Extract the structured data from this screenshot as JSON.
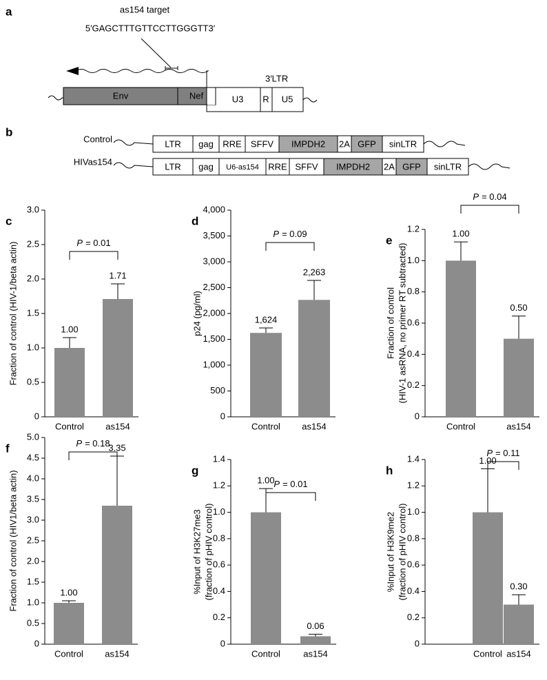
{
  "panel_a": {
    "letter": "a",
    "target_title": "as154 target",
    "target_seq": "5′GAGCTTTGTTCCTTGGGTT3′",
    "ltr_label": "3′LTR",
    "boxes": [
      "Env",
      "Nef",
      "U3",
      "R",
      "U5"
    ]
  },
  "panel_b": {
    "letter": "b",
    "rows": [
      {
        "label": "Control",
        "segments": [
          "LTR",
          "gag",
          "RRE",
          "SFFV",
          "IMPDH2",
          "2A",
          "GFP",
          "sinLTR"
        ]
      },
      {
        "label": "HIVas154",
        "segments": [
          "LTR",
          "gag",
          "U6-as154",
          "RRE",
          "SFFV",
          "IMPDH2",
          "2A",
          "GFP",
          "sinLTR"
        ]
      }
    ]
  },
  "chart_data": [
    {
      "type": "bar",
      "letter": "c",
      "ylabel": [
        "Fraction of control (HIV-1/beta actin)"
      ],
      "categories": [
        "Control",
        "as154"
      ],
      "values": [
        1.0,
        1.71
      ],
      "value_labels": [
        "1.00",
        "1.71"
      ],
      "errors": [
        0.15,
        0.22
      ],
      "color": "#8c8c8c",
      "p_symbol": "P",
      "p_value": "= 0.01",
      "ylim": [
        0,
        3
      ],
      "yticks": [
        0,
        0.5,
        {
          "value": 1,
          "label": "1.0"
        },
        1.5,
        {
          "value": 2,
          "label": "2.0"
        },
        2.5,
        {
          "value": 3,
          "label": "3.0"
        }
      ]
    },
    {
      "type": "bar",
      "letter": "d",
      "ylabel": [
        "p24 (pg/ml)"
      ],
      "categories": [
        "Control",
        "as154"
      ],
      "values": [
        1624,
        2263
      ],
      "value_labels": [
        "1,624",
        "2,263"
      ],
      "errors": [
        96,
        377
      ],
      "color": "#8c8c8c",
      "p_symbol": "P",
      "p_value": "= 0.09",
      "ylim": [
        0,
        4000
      ],
      "yticks": [
        0,
        500,
        {
          "value": 1000,
          "label": "1,000"
        },
        {
          "value": 1500,
          "label": "1,500"
        },
        {
          "value": 2000,
          "label": "2,000"
        },
        {
          "value": 2500,
          "label": "2,500"
        },
        {
          "value": 3000,
          "label": "3,000"
        },
        {
          "value": 3500,
          "label": "3,500"
        },
        {
          "value": 4000,
          "label": "4,000"
        }
      ]
    },
    {
      "type": "bar",
      "letter": "e",
      "ylabel": [
        "Fraction of control",
        "(HIV-1 asRNA, no primer RT subtracted)"
      ],
      "categories": [
        "Control",
        "as154"
      ],
      "values": [
        1.0,
        0.5
      ],
      "value_labels": [
        "1.00",
        "0.50"
      ],
      "errors": [
        0.12,
        0.145
      ],
      "color": "#8c8c8c",
      "p_symbol": "P",
      "p_value": "= 0.04",
      "ylim": [
        0,
        1.2
      ],
      "yticks": [
        0,
        0.2,
        0.4,
        0.6,
        0.8,
        {
          "value": 1,
          "label": "1.0"
        },
        1.2
      ]
    },
    {
      "type": "bar",
      "letter": "f",
      "ylabel": [
        "Fraction of control (HIV1/beta actin)"
      ],
      "categories": [
        "Control",
        "as154"
      ],
      "values": [
        1.0,
        3.35
      ],
      "value_labels": [
        "1.00",
        "3.35"
      ],
      "errors": [
        0.05,
        1.2
      ],
      "color": "#8c8c8c",
      "p_symbol": "P",
      "p_value": "= 0.18",
      "ylim": [
        0,
        5
      ],
      "yticks": [
        0,
        0.5,
        {
          "value": 1,
          "label": "1.0"
        },
        1.5,
        {
          "value": 2,
          "label": "2.0"
        },
        2.5,
        {
          "value": 3,
          "label": "3.0"
        },
        3.5,
        {
          "value": 4,
          "label": "4.0"
        },
        4.5,
        {
          "value": 5,
          "label": "5.0"
        }
      ]
    },
    {
      "type": "bar",
      "letter": "g",
      "ylabel": [
        "%Input of H3K27me3",
        "(fraction of pHIV control)"
      ],
      "categories": [
        "Control",
        "as154"
      ],
      "values": [
        1.0,
        0.06
      ],
      "value_labels": [
        "1.00",
        "0.06"
      ],
      "errors": [
        0.18,
        0.015
      ],
      "color": "#8c8c8c",
      "p_symbol": "P",
      "p_value": "= 0.01",
      "ylim": [
        0,
        1.4
      ],
      "yticks": [
        0,
        0.2,
        0.4,
        0.6,
        0.8,
        {
          "value": 1,
          "label": "1.0"
        },
        1.2,
        1.4
      ]
    },
    {
      "type": "bar",
      "letter": "h",
      "ylabel": [
        "%Input of H3K9me2",
        "(fraction of pHIV control)"
      ],
      "categories": [
        "Control",
        "as154"
      ],
      "values": [
        1.0,
        0.3
      ],
      "value_labels": [
        "1.00",
        "0.30"
      ],
      "errors": [
        0.33,
        0.075
      ],
      "color": "#8c8c8c",
      "p_symbol": "P",
      "p_value": "= 0.11",
      "ylim": [
        0,
        1.4
      ],
      "yticks": [
        0,
        0.2,
        0.4,
        0.6,
        0.8,
        {
          "value": 1,
          "label": "1.0"
        },
        1.2,
        1.4
      ]
    }
  ]
}
